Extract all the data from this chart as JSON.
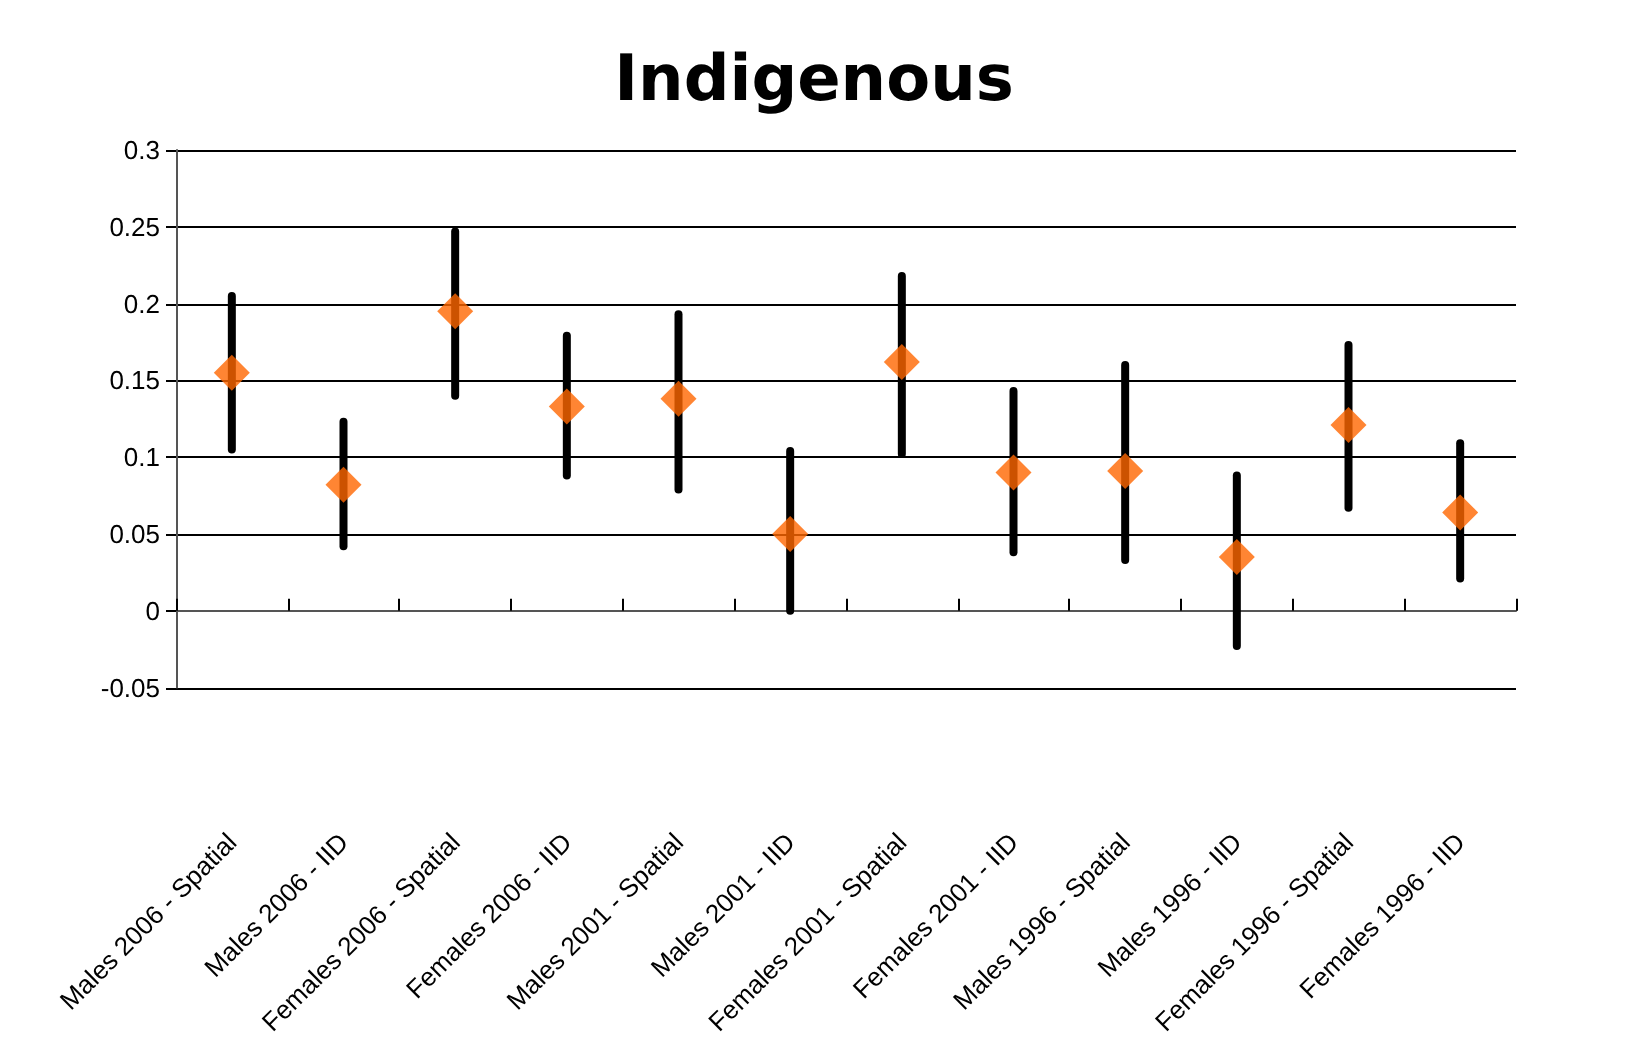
{
  "chart_data": {
    "type": "scatter",
    "title": "Indigenous",
    "categories": [
      "Males 2006 - Spatial",
      "Males 2006 - IID",
      "Females 2006 - Spatial",
      "Females 2006 - IID",
      "Males 2001 - Spatial",
      "Males 2001 - IID",
      "Females 2001 - Spatial",
      "Females 2001 - IID",
      "Males 1996 - Spatial",
      "Males 1996 - IID",
      "Females 1996 - Spatial",
      "Females 1996 - IID"
    ],
    "series": [
      {
        "color": "#ff6600",
        "values": [
          0.155,
          0.082,
          0.195,
          0.133,
          0.138,
          0.05,
          0.162,
          0.09,
          0.091,
          0.035,
          0.121,
          0.064
        ],
        "errors": [
          [
            0.105,
            0.205
          ],
          [
            0.042,
            0.123
          ],
          [
            0.14,
            0.247
          ],
          [
            0.088,
            0.179
          ],
          [
            0.079,
            0.193
          ],
          [
            0.0,
            0.104
          ],
          [
            0.102,
            0.218
          ],
          [
            0.038,
            0.143
          ],
          [
            0.033,
            0.16
          ],
          [
            -0.023,
            0.088
          ],
          [
            0.067,
            0.173
          ],
          [
            0.021,
            0.109
          ]
        ]
      }
    ],
    "ylim": [
      -0.05,
      0.3
    ],
    "yticks": [
      -0.05,
      0,
      0.05,
      0.1,
      0.15,
      0.2,
      0.25,
      0.3
    ],
    "grid": "y",
    "marker": "diamond"
  }
}
